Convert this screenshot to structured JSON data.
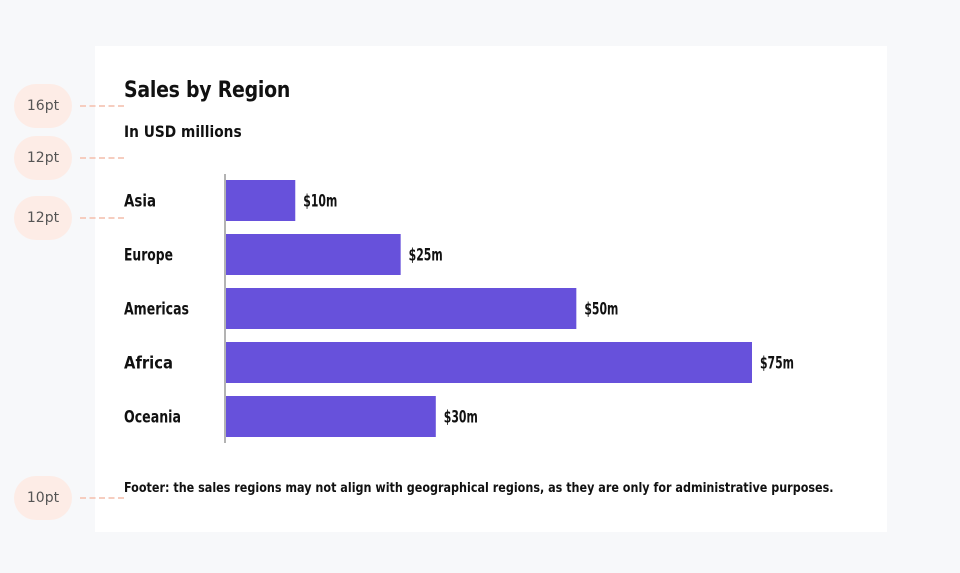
{
  "annotations": {
    "title_size": "16pt",
    "subtitle_size": "12pt",
    "label_size": "12pt",
    "footer_size": "10pt"
  },
  "footer": "Footer: the sales regions may not align with geographical regions, as they are only for administrative purposes.",
  "colors": {
    "bar": "#6751db",
    "background": "#f7f8fa",
    "card": "#ffffff",
    "badge": "#fdece6"
  },
  "chart_data": {
    "type": "bar",
    "orientation": "horizontal",
    "title": "Sales by Region",
    "subtitle": "In USD millions",
    "categories": [
      "Asia",
      "Europe",
      "Americas",
      "Africa",
      "Oceania"
    ],
    "values": [
      10,
      25,
      50,
      75,
      30
    ],
    "value_labels": [
      "$10m",
      "$25m",
      "$50m",
      "$75m",
      "$30m"
    ],
    "xlim": [
      0,
      75
    ],
    "grid": false,
    "legend": "none"
  }
}
